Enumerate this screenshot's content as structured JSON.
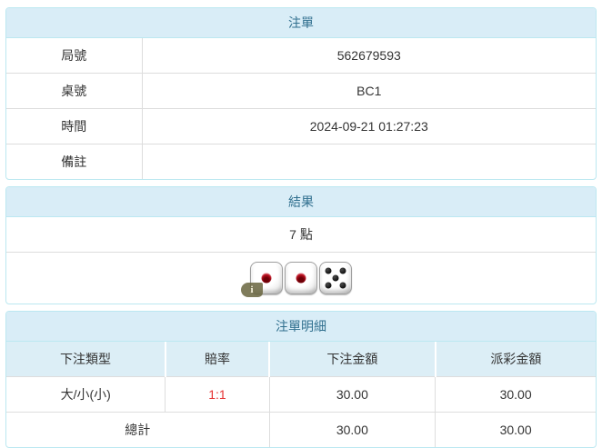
{
  "bet_slip": {
    "title": "注單",
    "rows": [
      {
        "label": "局號",
        "value": "562679593"
      },
      {
        "label": "桌號",
        "value": "BC1"
      },
      {
        "label": "時間",
        "value": "2024-09-21 01:27:23"
      },
      {
        "label": "備註",
        "value": ""
      }
    ]
  },
  "result": {
    "title": "結果",
    "points": "7 點",
    "dice": [
      {
        "value": 1,
        "color": "red",
        "info": true
      },
      {
        "value": 1,
        "color": "red"
      },
      {
        "value": 5,
        "color": "black"
      }
    ],
    "info_badge": "i"
  },
  "bet_details": {
    "title": "注單明細",
    "columns": [
      "下注類型",
      "賠率",
      "下注金額",
      "派彩金額"
    ],
    "rows": [
      {
        "bet_type": "大/小(小)",
        "odds": "1:1",
        "bet_amount": "30.00",
        "payout": "30.00"
      }
    ],
    "total": {
      "label": "總計",
      "bet_amount": "30.00",
      "payout": "30.00"
    }
  },
  "colors": {
    "heading_bg": "#d9edf7",
    "heading_text": "#31708f",
    "panel_border": "#bce8f1",
    "header_row_bg": "#dceef6",
    "cell_border": "#dddddd",
    "text": "#333333",
    "odds_red": "#e53333",
    "die_pip_red": "#b50e1d",
    "die_pip_black": "#0c0c0c",
    "info_badge_bg": "#68653e"
  }
}
